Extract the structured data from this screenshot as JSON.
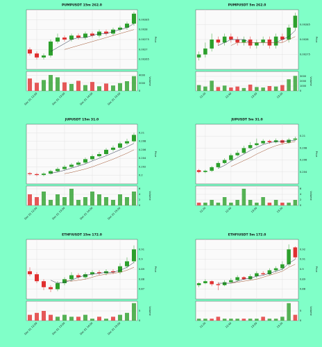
{
  "chart_data": [
    {
      "type": "candlestick",
      "title": "PUMPUSDT 15m 262.0",
      "ylabel": "Price",
      "vol_label": "Volume",
      "up_color": "#2ca02c",
      "down_color": "#e03030",
      "categories": [
        null,
        "Dec 01 12:00",
        null,
        null,
        null,
        "Dec 01 13:00",
        null,
        null,
        null,
        "Dec 01 14:00",
        null,
        null,
        null,
        "Dec 01 15:00",
        null,
        null
      ],
      "open": [
        0.0027,
        0.00268,
        0.00266,
        0.00267,
        0.00274,
        0.00276,
        0.00275,
        0.00277,
        0.00276,
        0.00278,
        0.00277,
        0.00279,
        0.00278,
        0.0028,
        0.00281,
        0.00283
      ],
      "high": [
        0.00271,
        0.00269,
        0.00268,
        0.00275,
        0.00278,
        0.00277,
        0.00278,
        0.00278,
        0.00279,
        0.00279,
        0.0028,
        0.0028,
        0.00281,
        0.00282,
        0.00284,
        0.00289
      ],
      "low": [
        0.00267,
        0.00265,
        0.00265,
        0.00266,
        0.00273,
        0.00274,
        0.00274,
        0.00275,
        0.00275,
        0.00276,
        0.00276,
        0.00277,
        0.00277,
        0.00279,
        0.0028,
        0.00282
      ],
      "close": [
        0.00268,
        0.00266,
        0.00267,
        0.00274,
        0.00276,
        0.00275,
        0.00277,
        0.00276,
        0.00278,
        0.00277,
        0.00279,
        0.00278,
        0.0028,
        0.00281,
        0.00283,
        0.00288
      ],
      "volume": [
        3200,
        2100,
        2800,
        4100,
        3500,
        2200,
        1800,
        2600,
        1500,
        2300,
        1200,
        1900,
        1400,
        2000,
        2500,
        3800
      ],
      "ma": [
        {
          "color": "#1f2a44",
          "values": [
            null,
            null,
            null,
            0.00269,
            0.00271,
            0.00273,
            0.00275,
            0.00276,
            0.00276,
            0.00277,
            0.00278,
            0.00278,
            0.00279,
            0.0028,
            0.00281,
            0.00283
          ]
        },
        {
          "color": "#a0522d",
          "values": [
            null,
            null,
            null,
            null,
            null,
            0.0027,
            0.00271,
            0.00272,
            0.00273,
            0.00274,
            0.00275,
            0.00276,
            0.00277,
            0.00278,
            0.00279,
            0.0028
          ]
        }
      ],
      "ylim": [
        0.0026,
        0.0029
      ],
      "yticks": [
        0.00265,
        0.0027,
        0.00275,
        0.0028,
        0.00285
      ],
      "vol_ylim": [
        0,
        5000
      ],
      "vol_yticks": [
        0,
        2000,
        4000
      ],
      "grid": true
    },
    {
      "type": "candlestick",
      "title": "PUMPUSDT 5m 262.0",
      "ylabel": "Price",
      "vol_label": "Volume",
      "up_color": "#2ca02c",
      "down_color": "#e03030",
      "categories": [
        null,
        "12:20",
        null,
        null,
        null,
        "12:40",
        null,
        null,
        null,
        "13:00",
        null,
        null,
        null,
        "13:20",
        null,
        null
      ],
      "open": [
        0.00274,
        0.00275,
        0.00277,
        0.0028,
        0.00279,
        0.00281,
        0.0028,
        0.00279,
        0.0028,
        0.00278,
        0.00279,
        0.0028,
        0.00278,
        0.00281,
        0.0028,
        0.00284
      ],
      "high": [
        0.00276,
        0.00279,
        0.00282,
        0.00281,
        0.00282,
        0.00282,
        0.00281,
        0.00281,
        0.00281,
        0.0028,
        0.00281,
        0.00281,
        0.00282,
        0.00282,
        0.00285,
        0.00289
      ],
      "low": [
        0.00273,
        0.00274,
        0.00276,
        0.00278,
        0.00278,
        0.00279,
        0.00278,
        0.00278,
        0.00277,
        0.00277,
        0.00278,
        0.00277,
        0.00277,
        0.00279,
        0.00279,
        0.00283
      ],
      "close": [
        0.00275,
        0.00277,
        0.0028,
        0.00279,
        0.00281,
        0.0028,
        0.00279,
        0.0028,
        0.00278,
        0.00279,
        0.0028,
        0.00278,
        0.00281,
        0.0028,
        0.00284,
        0.00288
      ],
      "volume": [
        1200,
        900,
        2100,
        800,
        1100,
        700,
        900,
        600,
        1300,
        800,
        700,
        1000,
        900,
        1200,
        2400,
        3100
      ],
      "ma": [
        {
          "color": "#1f2a44",
          "values": [
            null,
            null,
            null,
            0.00278,
            0.00279,
            0.0028,
            0.0028,
            0.0028,
            0.00279,
            0.00279,
            0.00279,
            0.00279,
            0.00279,
            0.0028,
            0.00281,
            0.00283
          ]
        },
        {
          "color": "#a0522d",
          "values": [
            null,
            null,
            null,
            null,
            null,
            0.00278,
            0.00279,
            0.00279,
            0.00279,
            0.00279,
            0.00279,
            0.00279,
            0.00279,
            0.00279,
            0.0028,
            0.00281
          ]
        }
      ],
      "ylim": [
        0.0027,
        0.0029
      ],
      "yticks": [
        0.00275,
        0.0028,
        0.00285
      ],
      "vol_ylim": [
        0,
        4000
      ],
      "vol_yticks": [
        0,
        1000,
        2000,
        3000
      ],
      "grid": true
    },
    {
      "type": "candlestick",
      "title": "JUPUSDT 15m 31.0",
      "ylabel": "Price",
      "vol_label": "Volume",
      "up_color": "#2ca02c",
      "down_color": "#e03030",
      "categories": [
        null,
        "Dec 01 12:00",
        null,
        null,
        null,
        "Dec 01 13:00",
        null,
        null,
        null,
        "Dec 01 14:00",
        null,
        null,
        null,
        "Dec 01 15:00",
        null,
        null
      ],
      "open": [
        0.2005,
        0.2003,
        0.2001,
        0.2004,
        0.201,
        0.2015,
        0.202,
        0.2025,
        0.203,
        0.2038,
        0.2045,
        0.205,
        0.206,
        0.2065,
        0.2075,
        0.208
      ],
      "high": [
        0.2008,
        0.2006,
        0.2007,
        0.2013,
        0.2019,
        0.2024,
        0.2029,
        0.2034,
        0.2042,
        0.2049,
        0.2055,
        0.2064,
        0.207,
        0.2079,
        0.2086,
        0.21
      ],
      "low": [
        0.2,
        0.1998,
        0.1998,
        0.2002,
        0.2007,
        0.2012,
        0.2017,
        0.2022,
        0.2027,
        0.2035,
        0.2042,
        0.2047,
        0.2056,
        0.2062,
        0.2071,
        0.2077
      ],
      "close": [
        0.2003,
        0.2001,
        0.2004,
        0.201,
        0.2015,
        0.202,
        0.2025,
        0.203,
        0.2038,
        0.2045,
        0.205,
        0.206,
        0.2065,
        0.2075,
        0.208,
        0.2095
      ],
      "volume": [
        4,
        3,
        5,
        2,
        4,
        3,
        6,
        2,
        3,
        5,
        4,
        3,
        2,
        4,
        3,
        5
      ],
      "ma": [
        {
          "color": "#1f2a44",
          "values": [
            null,
            null,
            null,
            0.2005,
            0.2008,
            0.2012,
            0.2017,
            0.2022,
            0.2027,
            0.2034,
            0.204,
            0.2046,
            0.2053,
            0.206,
            0.2067,
            0.2075
          ]
        },
        {
          "color": "#a0522d",
          "values": [
            null,
            null,
            null,
            null,
            null,
            0.2004,
            0.2007,
            0.2011,
            0.2015,
            0.202,
            0.2026,
            0.2032,
            0.2038,
            0.2045,
            0.2052,
            0.206
          ]
        }
      ],
      "ylim": [
        0.198,
        0.212
      ],
      "yticks": [
        0.2,
        0.202,
        0.204,
        0.206,
        0.208,
        0.21
      ],
      "vol_ylim": [
        0,
        7
      ],
      "vol_yticks": [
        0,
        2,
        4,
        6
      ],
      "grid": true
    },
    {
      "type": "candlestick",
      "title": "JUPUSDT 5m 31.0",
      "ylabel": "Price",
      "vol_label": "Volume",
      "up_color": "#2ca02c",
      "down_color": "#e03030",
      "categories": [
        null,
        "12:20",
        null,
        null,
        null,
        "12:40",
        null,
        null,
        null,
        "13:00",
        null,
        null,
        null,
        "13:20",
        null,
        null
      ],
      "open": [
        0.2043,
        0.204,
        0.2042,
        0.2048,
        0.2055,
        0.206,
        0.2068,
        0.2072,
        0.208,
        0.2085,
        0.2088,
        0.2092,
        0.209,
        0.2093,
        0.2089,
        0.2094
      ],
      "high": [
        0.2045,
        0.2044,
        0.205,
        0.2058,
        0.2063,
        0.2071,
        0.2076,
        0.2084,
        0.209,
        0.2096,
        0.2095,
        0.2094,
        0.2096,
        0.2095,
        0.2097,
        0.2099
      ],
      "low": [
        0.2038,
        0.2038,
        0.204,
        0.2046,
        0.2053,
        0.2058,
        0.2066,
        0.207,
        0.2078,
        0.2083,
        0.2086,
        0.2087,
        0.2088,
        0.2086,
        0.2087,
        0.2092
      ],
      "close": [
        0.204,
        0.2042,
        0.2048,
        0.2055,
        0.206,
        0.2068,
        0.2072,
        0.208,
        0.2085,
        0.2088,
        0.2092,
        0.209,
        0.2093,
        0.2089,
        0.2094,
        0.2096
      ],
      "volume": [
        1,
        1,
        2,
        1,
        3,
        1,
        2,
        6,
        2,
        1,
        3,
        1,
        2,
        1,
        1,
        2
      ],
      "ma": [
        {
          "color": "#1f2a44",
          "values": [
            null,
            null,
            null,
            0.2046,
            0.2051,
            0.2058,
            0.2064,
            0.207,
            0.2076,
            0.2081,
            0.2086,
            0.2089,
            0.2091,
            0.2091,
            0.2092,
            0.2093
          ]
        },
        {
          "color": "#a0522d",
          "values": [
            null,
            null,
            null,
            null,
            null,
            0.2049,
            0.2054,
            0.2059,
            0.2064,
            0.207,
            0.2075,
            0.208,
            0.2084,
            0.2087,
            0.2089,
            0.2091
          ]
        }
      ],
      "ylim": [
        0.202,
        0.212
      ],
      "yticks": [
        0.204,
        0.206,
        0.208,
        0.21
      ],
      "vol_ylim": [
        0,
        7
      ],
      "vol_yticks": [
        0,
        2,
        4,
        6
      ],
      "grid": true
    },
    {
      "type": "candlestick",
      "title": "ETHFIUSDT 15m 172.0",
      "ylabel": "Price",
      "vol_label": "Volume",
      "up_color": "#2ca02c",
      "down_color": "#e03030",
      "categories": [
        null,
        "Dec 01 12:00",
        null,
        null,
        null,
        "Dec 01 13:00",
        null,
        null,
        null,
        "Dec 01 14:00",
        null,
        null,
        null,
        "Dec 01 15:00",
        null,
        null
      ],
      "open": [
        0.888,
        0.885,
        0.878,
        0.872,
        0.87,
        0.876,
        0.88,
        0.884,
        0.882,
        0.885,
        0.887,
        0.886,
        0.888,
        0.887,
        0.893,
        0.898
      ],
      "high": [
        0.892,
        0.887,
        0.88,
        0.874,
        0.878,
        0.882,
        0.887,
        0.886,
        0.887,
        0.889,
        0.889,
        0.89,
        0.89,
        0.896,
        0.902,
        0.914
      ],
      "low": [
        0.883,
        0.876,
        0.869,
        0.867,
        0.868,
        0.874,
        0.878,
        0.88,
        0.88,
        0.883,
        0.884,
        0.884,
        0.885,
        0.885,
        0.891,
        0.896
      ],
      "close": [
        0.885,
        0.878,
        0.872,
        0.87,
        0.876,
        0.88,
        0.884,
        0.882,
        0.885,
        0.887,
        0.886,
        0.888,
        0.887,
        0.893,
        0.898,
        0.91
      ],
      "volume": [
        3,
        4,
        5,
        3,
        2,
        3,
        2,
        2,
        3,
        1,
        2,
        1,
        2,
        3,
        4,
        9
      ],
      "ma": [
        {
          "color": "#1f2a44",
          "values": [
            null,
            null,
            null,
            0.879,
            0.876,
            0.877,
            0.879,
            0.882,
            0.884,
            0.885,
            0.886,
            0.887,
            0.887,
            0.889,
            0.892,
            0.897
          ]
        },
        {
          "color": "#a0522d",
          "values": [
            null,
            null,
            null,
            null,
            null,
            0.879,
            0.878,
            0.879,
            0.88,
            0.882,
            0.884,
            0.885,
            0.886,
            0.887,
            0.889,
            0.892
          ]
        }
      ],
      "ylim": [
        0.86,
        0.92
      ],
      "yticks": [
        0.87,
        0.88,
        0.89,
        0.9,
        0.91
      ],
      "vol_ylim": [
        0,
        10
      ],
      "vol_yticks": [
        0,
        5
      ],
      "grid": true
    },
    {
      "type": "candlestick",
      "title": "ETHFIUSDT 5m 172.0",
      "ylabel": "Price",
      "vol_label": "Volume",
      "up_color": "#2ca02c",
      "down_color": "#e03030",
      "categories": [
        null,
        "12:20",
        null,
        null,
        null,
        "12:40",
        null,
        null,
        null,
        "13:00",
        null,
        null,
        null,
        "13:20",
        null,
        null
      ],
      "open": [
        0.884,
        0.886,
        0.888,
        0.885,
        0.884,
        0.887,
        0.889,
        0.892,
        0.89,
        0.893,
        0.896,
        0.895,
        0.899,
        0.901,
        0.905,
        0.922
      ],
      "high": [
        0.887,
        0.89,
        0.889,
        0.887,
        0.889,
        0.891,
        0.894,
        0.893,
        0.895,
        0.898,
        0.898,
        0.901,
        0.903,
        0.908,
        0.925,
        0.923
      ],
      "low": [
        0.882,
        0.885,
        0.883,
        0.879,
        0.883,
        0.886,
        0.888,
        0.889,
        0.889,
        0.891,
        0.894,
        0.894,
        0.897,
        0.899,
        0.903,
        0.91
      ],
      "close": [
        0.886,
        0.888,
        0.885,
        0.884,
        0.887,
        0.889,
        0.892,
        0.89,
        0.893,
        0.896,
        0.895,
        0.899,
        0.901,
        0.905,
        0.92,
        0.912
      ],
      "volume": [
        1,
        1,
        1,
        2,
        1,
        1,
        1,
        1,
        1,
        1,
        2,
        1,
        1,
        2,
        9,
        3
      ],
      "ma": [
        {
          "color": "#1f2a44",
          "values": [
            null,
            null,
            null,
            0.886,
            0.886,
            0.886,
            0.888,
            0.89,
            0.891,
            0.893,
            0.894,
            0.896,
            0.898,
            0.9,
            0.906,
            0.91
          ]
        },
        {
          "color": "#a0522d",
          "values": [
            null,
            null,
            null,
            null,
            null,
            0.886,
            0.887,
            0.888,
            0.889,
            0.89,
            0.892,
            0.894,
            0.896,
            0.898,
            0.902,
            0.905
          ]
        }
      ],
      "ylim": [
        0.87,
        0.93
      ],
      "yticks": [
        0.88,
        0.89,
        0.9,
        0.91,
        0.92
      ],
      "vol_ylim": [
        0,
        10
      ],
      "vol_yticks": [
        0,
        5
      ],
      "grid": true
    }
  ]
}
